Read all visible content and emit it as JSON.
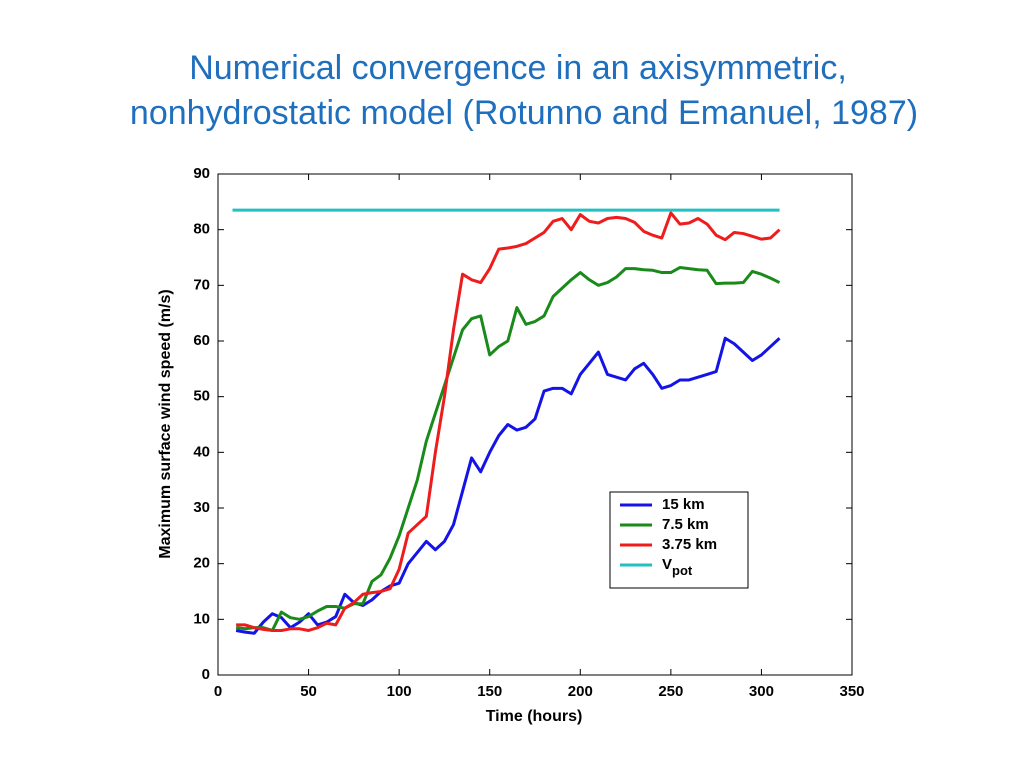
{
  "chart_data": {
    "type": "line",
    "title": "Numerical convergence in an axisymmetric,",
    "subtitle": "nonhydrostatic model (Rotunno and Emanuel, 1987)",
    "x_label": "Time (hours)",
    "y_label": "Maximum surface wind speed (m/s)",
    "xlim": [
      0,
      350
    ],
    "xticks": [
      0,
      50,
      100,
      150,
      200,
      250,
      300,
      350
    ],
    "ylim": [
      0,
      90
    ],
    "yticks": [
      0,
      10,
      20,
      30,
      40,
      50,
      60,
      70,
      80,
      90
    ],
    "legend": "lower-right",
    "x": [
      10,
      15,
      20,
      25,
      30,
      35,
      40,
      45,
      50,
      55,
      60,
      65,
      70,
      75,
      80,
      85,
      90,
      95,
      100,
      105,
      110,
      115,
      120,
      125,
      130,
      135,
      140,
      145,
      150,
      155,
      160,
      165,
      170,
      175,
      180,
      185,
      190,
      195,
      200,
      205,
      210,
      215,
      220,
      225,
      230,
      235,
      240,
      245,
      250,
      255,
      260,
      265,
      270,
      275,
      280,
      285,
      290,
      295,
      300,
      305,
      310
    ],
    "series": [
      {
        "name": "15 km",
        "color": "#1414e6",
        "values": [
          8,
          7.7,
          7.5,
          9.5,
          11,
          10.3,
          8.5,
          9.5,
          11,
          9,
          9.5,
          10.5,
          14.5,
          13,
          12.5,
          13.5,
          15,
          16,
          16.5,
          20,
          22,
          24,
          22.5,
          24,
          27,
          33,
          39,
          36.5,
          40,
          43,
          45,
          44,
          44.5,
          46,
          51,
          51.5,
          51.5,
          50.5,
          54,
          56,
          58,
          54,
          53.5,
          53,
          55,
          56,
          54,
          51.5,
          52,
          53,
          53,
          53.5,
          54,
          54.5,
          60.5,
          59.5,
          58,
          56.5,
          57.5,
          59,
          60.5
        ]
      },
      {
        "name": "7.5 km",
        "color": "#1a8a1a",
        "values": [
          8.5,
          8.3,
          8.5,
          8.5,
          8,
          11.3,
          10.3,
          10,
          10.5,
          11.5,
          12.3,
          12.3,
          12,
          12.8,
          12.8,
          16.8,
          18,
          21,
          25,
          30,
          35,
          42,
          47,
          52,
          57,
          62,
          64,
          64.5,
          57.5,
          59,
          60,
          66,
          63,
          63.5,
          64.5,
          68,
          69.5,
          71,
          72.3,
          71,
          70,
          70.5,
          71.5,
          73,
          73,
          72.8,
          72.7,
          72.3,
          72.3,
          73.2,
          73,
          72.8,
          72.7,
          70.3,
          70.4,
          70.4,
          70.5,
          72.5,
          72,
          71.3,
          70.5
        ]
      },
      {
        "name": "3.75 km",
        "color": "#ee1c1c",
        "values": [
          9,
          9,
          8.5,
          8.2,
          8,
          8,
          8.3,
          8.3,
          8,
          8.5,
          9.3,
          9,
          12,
          13,
          14.5,
          14.8,
          15,
          15.5,
          19,
          25.5,
          27,
          28.5,
          40,
          50,
          62,
          72,
          71,
          70.5,
          73,
          76.5,
          76.7,
          77,
          77.5,
          78.5,
          79.5,
          81.5,
          82,
          80,
          82.7,
          81.5,
          81.2,
          82,
          82.2,
          82,
          81.3,
          79.7,
          79,
          78.5,
          83,
          81,
          81.2,
          82,
          81,
          79,
          78.2,
          79.5,
          79.3,
          78.8,
          78.3,
          78.5,
          80
        ]
      },
      {
        "name": "V",
        "subscript": "pot",
        "color": "#22c0c0",
        "x": [
          8,
          310
        ],
        "values": [
          83.5,
          83.5
        ]
      }
    ]
  }
}
